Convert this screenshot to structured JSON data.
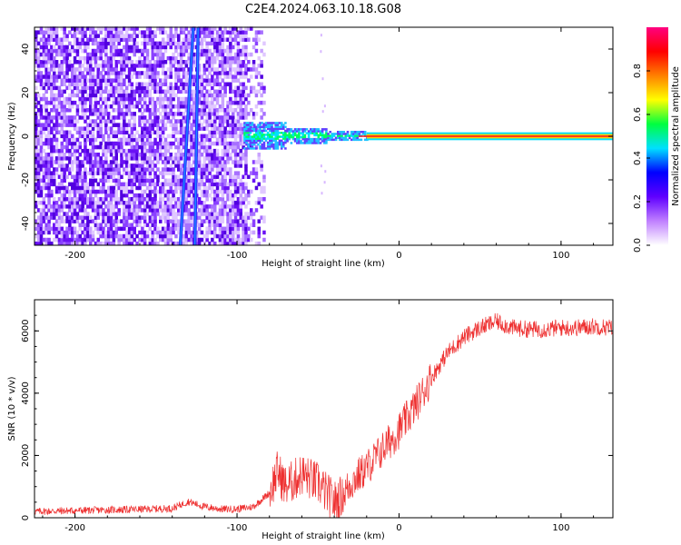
{
  "title": "C2E4.2024.063.10.18.G08",
  "chart_data": [
    {
      "type": "heatmap",
      "xlabel": "Height of straight line (km)",
      "ylabel": "Frequency (Hz)",
      "xlim": [
        -225,
        132
      ],
      "ylim": [
        -50,
        50
      ],
      "x_ticks": [
        -200,
        -100,
        0,
        100
      ],
      "y_ticks": [
        -40,
        -20,
        0,
        20,
        40
      ],
      "colorbar": {
        "label": "Normalized spectral amplitude",
        "range": [
          0,
          1
        ],
        "ticks": [
          0.0,
          0.2,
          0.4,
          0.6,
          0.8
        ],
        "colors": [
          "#ffffff",
          "#c080ff",
          "#6000ff",
          "#0000ff",
          "#00e0ff",
          "#00ff40",
          "#ffff00",
          "#ff8000",
          "#ff0000",
          "#ff0080"
        ]
      },
      "noise_region_x": [
        -225,
        -84
      ],
      "diagonal_streaks": [
        {
          "x_bottom": -135,
          "x_top": -127,
          "y_bottom": -50,
          "y_top": 50
        },
        {
          "x_bottom": -126,
          "x_top": -124,
          "y_bottom": -50,
          "y_top": 50
        }
      ],
      "signal_line": {
        "y": 0,
        "x_start": -96,
        "x_end": 132
      }
    },
    {
      "type": "line",
      "xlabel": "Height of straight line (km)",
      "ylabel": "SNR (10 * v/v)",
      "xlim": [
        -225,
        132
      ],
      "ylim": [
        0,
        7000
      ],
      "x_ticks": [
        -200,
        -100,
        0,
        100
      ],
      "y_ticks": [
        0,
        2000,
        4000,
        6000
      ],
      "color": "#ee3030",
      "x": [
        -225,
        -200,
        -180,
        -160,
        -140,
        -130,
        -120,
        -110,
        -100,
        -90,
        -80,
        -75,
        -70,
        -60,
        -50,
        -45,
        -40,
        -35,
        -30,
        -20,
        -10,
        0,
        10,
        20,
        30,
        40,
        50,
        60,
        70,
        80,
        90,
        100,
        110,
        120,
        132
      ],
      "y": [
        200,
        230,
        250,
        270,
        300,
        520,
        350,
        280,
        280,
        350,
        800,
        1500,
        1000,
        1400,
        1100,
        800,
        500,
        700,
        1100,
        1600,
        2200,
        2800,
        3600,
        4500,
        5300,
        5800,
        6100,
        6300,
        6100,
        6050,
        6050,
        6100,
        6100,
        6150,
        6100
      ]
    }
  ]
}
